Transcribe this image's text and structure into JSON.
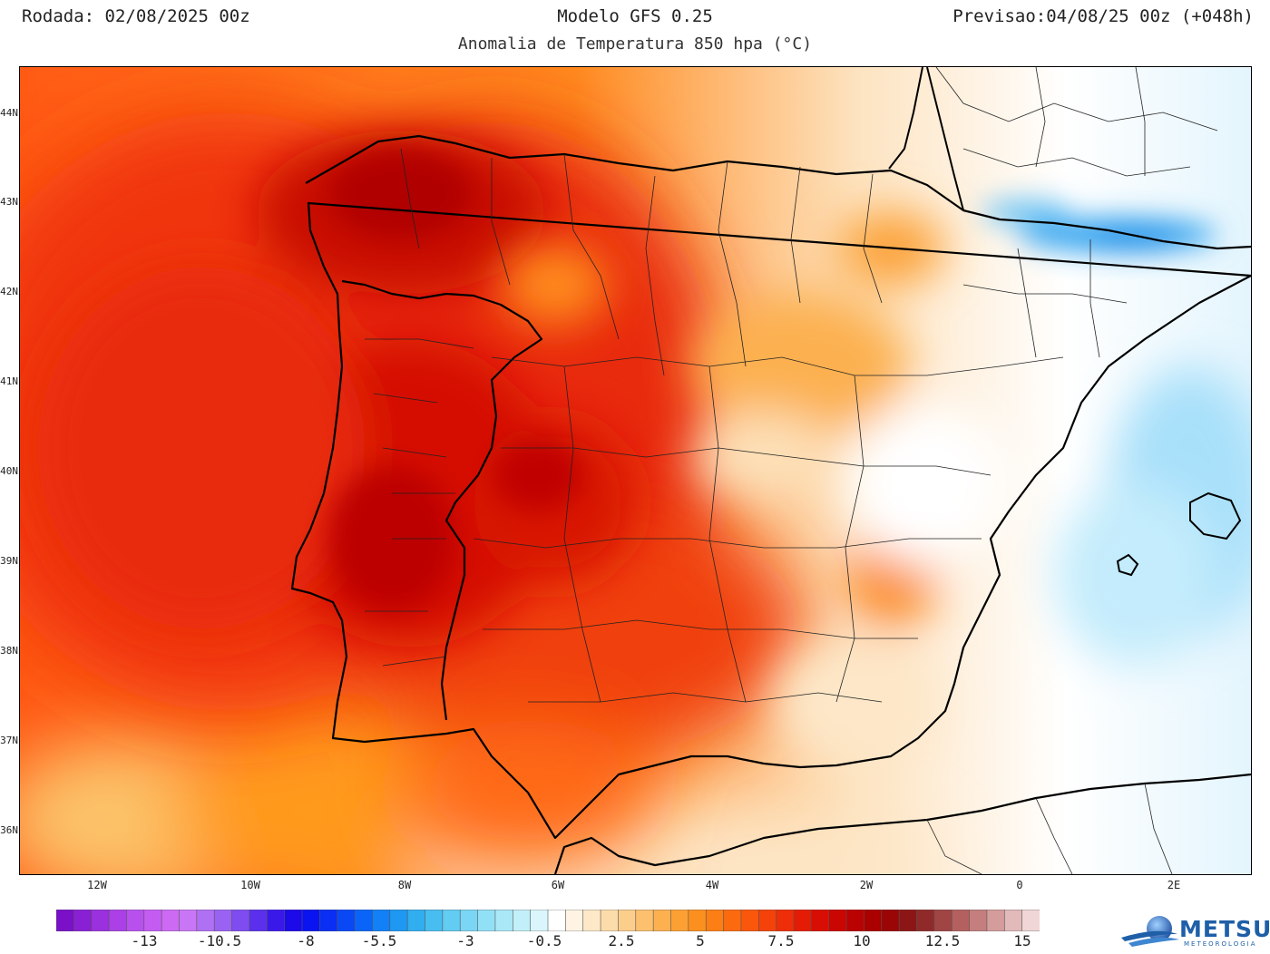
{
  "header": {
    "run": "Rodada: 02/08/2025 00z",
    "model": "Modelo GFS 0.25",
    "forecast": "Previsao:04/08/25 00z (+048h)",
    "subtitle": "Anomalia de Temperatura 850 hpa (°C)"
  },
  "map": {
    "region": "Iberian Peninsula",
    "lat_labels": [
      "44N",
      "43N",
      "42N",
      "41N",
      "40N",
      "39N",
      "38N",
      "37N",
      "36N"
    ],
    "lon_labels": [
      "12W",
      "10W",
      "8W",
      "6W",
      "4W",
      "2W",
      "0",
      "2E"
    ],
    "colors": {
      "very_hot": "#b80000",
      "hot": "#e21a08",
      "warm": "#ff5a14",
      "orange": "#ff9a1e",
      "light_orange": "#fcc46a",
      "pale": "#fde7c8",
      "neutral": "#ffffff",
      "cool": "#b6e4fb",
      "cold": "#1f8fe8"
    }
  },
  "colorbar": {
    "tick_labels": [
      "-13",
      "-10.5",
      "-8",
      "-5.5",
      "-3",
      "-0.5",
      "2.5",
      "5",
      "7.5",
      "10",
      "12.5",
      "15"
    ],
    "colors": [
      "#7a10c8",
      "#8a20d4",
      "#9a30de",
      "#aa40e6",
      "#b850ee",
      "#c45cf2",
      "#cc6af4",
      "#c876f6",
      "#b070f4",
      "#9a62f2",
      "#7f4cf0",
      "#5a30ec",
      "#3a18ea",
      "#1c0aea",
      "#0a14f0",
      "#0a2ef4",
      "#0a48f6",
      "#0a64f8",
      "#1280f6",
      "#1e98f2",
      "#30aef0",
      "#48bef0",
      "#62ccf2",
      "#7ad6f4",
      "#92e0f6",
      "#aae8f8",
      "#c2f0fa",
      "#daf6fc",
      "#ffffff",
      "#fff4e4",
      "#fde8c8",
      "#fcdcaa",
      "#fcce8c",
      "#fcc06e",
      "#fcb050",
      "#fca034",
      "#fc901e",
      "#fc7e14",
      "#fc6a10",
      "#fa560c",
      "#f4420a",
      "#ee2e08",
      "#e41c06",
      "#d80e04",
      "#ca0602",
      "#ba0202",
      "#aa0000",
      "#9a0606",
      "#8c1616",
      "#902a2a",
      "#a04444",
      "#b46060",
      "#c47e7e",
      "#d49c9c",
      "#e2baba",
      "#f0d6d6"
    ]
  },
  "logo": {
    "name": "METSUL",
    "sub": "METEOROLOGIA"
  }
}
